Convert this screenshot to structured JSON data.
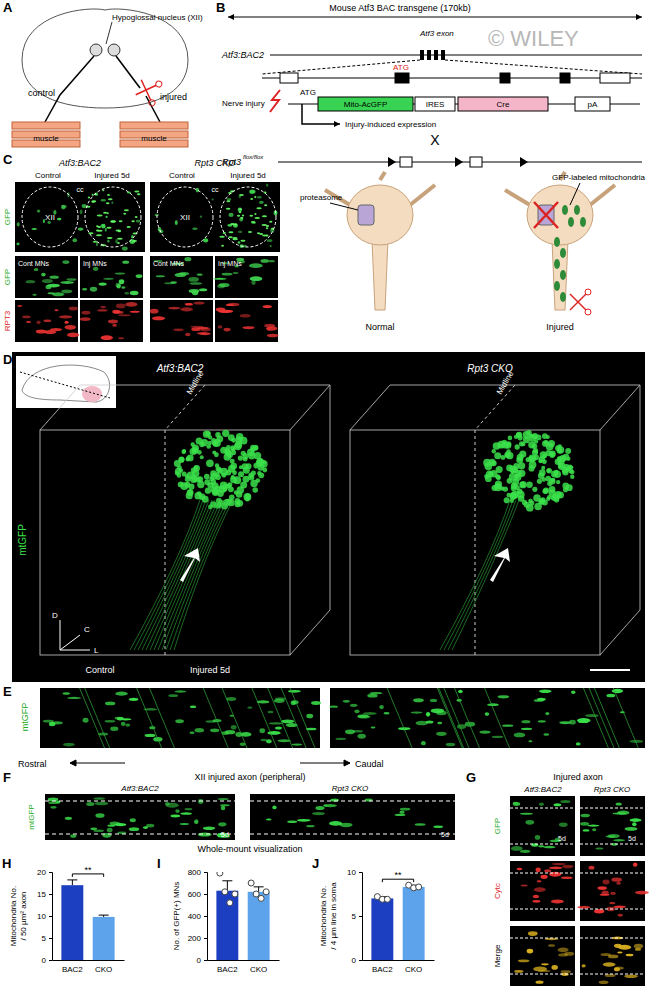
{
  "panel_letters": {
    "A": "A",
    "B": "B",
    "C": "C",
    "D": "D",
    "E": "E",
    "F": "F",
    "G": "G",
    "H": "H",
    "I": "I",
    "J": "J"
  },
  "watermark": "© WILEY",
  "panel_a": {
    "nucleus": "Hypoglossal nucleus (XII)",
    "control": "control",
    "injured": "injured",
    "muscle": [
      "muscle",
      "muscle"
    ]
  },
  "panel_b": {
    "transgene": "Mouse Atf3 BAC transgene (170kb)",
    "line": "Atf3:BAC2",
    "exon": "Atf3 exon",
    "atg_top": "ATG",
    "nerve_injury": "Nerve injury",
    "atg": "ATG",
    "construct": [
      "Mito-AcGFP",
      "IRES",
      "Cre",
      "pA"
    ],
    "expression": "Injury-induced expression",
    "cross": "X",
    "flox": "Rpt3",
    "flox_sup": "flox/flox",
    "proteasome": "proteasome",
    "mito": "GFP-labeled mitochondria",
    "states": [
      "Normal",
      "Injured"
    ]
  },
  "panel_c": {
    "columns": [
      "Atf3:BAC2",
      "Rpt3 CKO"
    ],
    "conditions": [
      "Control",
      "Injured 5d",
      "Control",
      "Injured 5d"
    ],
    "row1": "GFP",
    "region": [
      "XII",
      "XII"
    ],
    "cc": [
      "cc",
      "cc"
    ],
    "cells": [
      "Cont MNs",
      "Inj MNs",
      "Cont MNs",
      "Inj MNs"
    ],
    "rows": [
      "GFP",
      "RPT3"
    ]
  },
  "panel_d": {
    "columns": [
      "Atf3:BAC2",
      "Rpt3 CKO"
    ],
    "channel": "mtGFP",
    "midline": [
      "Midline",
      "Midline"
    ],
    "sides": [
      "Control",
      "Injured 5d"
    ],
    "axes": [
      "D",
      "C",
      "L"
    ]
  },
  "panel_e": {
    "channel": "mtGFP",
    "rostral": "Rostral",
    "caudal": "Caudal"
  },
  "panel_f": {
    "title": "XII injured axon (peripheral)",
    "columns": [
      "Atf3:BAC2",
      "Rpt3 CKO"
    ],
    "channel": "mtGFP",
    "time": [
      "5d",
      "5d"
    ],
    "method": "Whole-mount visualization"
  },
  "panel_g": {
    "title": "Injured axon",
    "columns": [
      "Atf3:BAC2",
      "Rpt3 CKO"
    ],
    "rows": [
      "GFP",
      "Cytc",
      "Merge"
    ],
    "time": [
      "5d",
      "5d"
    ]
  },
  "chart_data": [
    {
      "type": "bar",
      "categories": [
        "BAC2",
        "CKO"
      ],
      "values": [
        17,
        9.8
      ],
      "errors": [
        1.2,
        0.4
      ],
      "colors": [
        "#1b3fc0",
        "#5ca3ec"
      ],
      "ylabel": [
        "Mitochondria No.",
        "/ 50 µm² axon"
      ],
      "ylim": [
        0,
        20
      ],
      "yticks": [
        0,
        5,
        10,
        15,
        20
      ],
      "annotations": [
        "**"
      ]
    },
    {
      "type": "bar",
      "categories": [
        "BAC2",
        "CKO"
      ],
      "values": [
        630,
        620
      ],
      "errors": [
        90,
        45
      ],
      "points": [
        [
          790,
          620,
          520,
          600
        ],
        [
          700,
          600,
          560,
          620
        ]
      ],
      "colors": [
        "#1b3fc0",
        "#5ca3ec"
      ],
      "ylabel": [
        "No. of GFP(+) MNs"
      ],
      "ylim": [
        0,
        800
      ],
      "yticks": [
        0,
        200,
        400,
        600,
        800
      ]
    },
    {
      "type": "bar",
      "categories": [
        "BAC2",
        "CKO"
      ],
      "values": [
        7.0,
        8.3
      ],
      "errors": [
        0.2,
        0.2
      ],
      "points": [
        [
          7.2,
          6.9,
          6.9
        ],
        [
          8.5,
          8.2,
          8.3
        ]
      ],
      "colors": [
        "#1b3fc0",
        "#5ca3ec"
      ],
      "ylabel": [
        "Mitochondria No.",
        "/ 4 µm line in soma"
      ],
      "ylim": [
        0,
        10
      ],
      "yticks": [
        0,
        5,
        10
      ],
      "annotations": [
        "**"
      ]
    }
  ]
}
